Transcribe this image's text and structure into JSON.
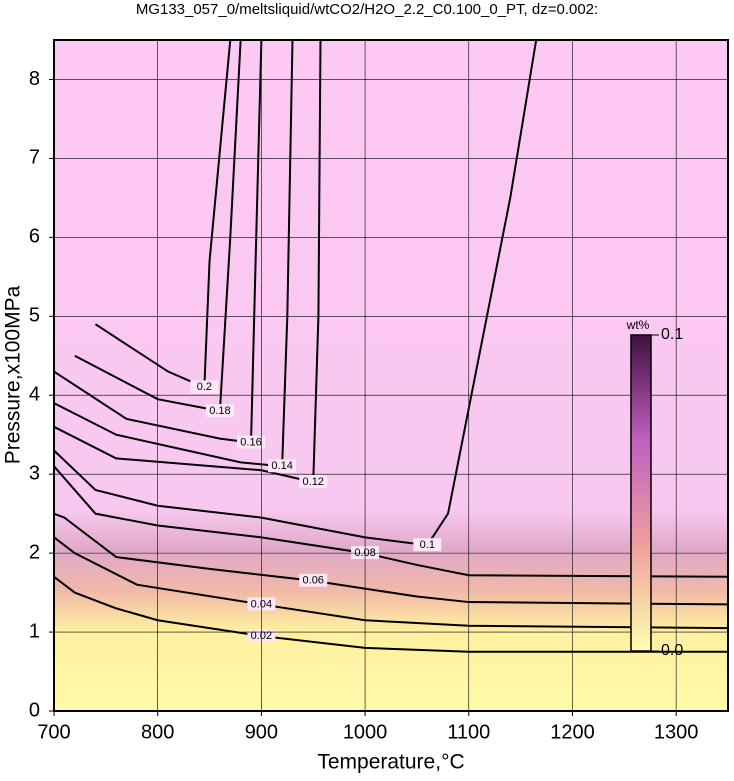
{
  "chart_data": {
    "type": "contour",
    "title": "MG133_057_0/meltsliquid/wtCO2/H2O_2.2_C0.100_0_PT, dz=0.002:",
    "xlabel": "Temperature,°C",
    "ylabel": "Pressure,x100MPa",
    "xlim": [
      700,
      1350
    ],
    "ylim": [
      0,
      8.5
    ],
    "xticks": [
      700,
      800,
      900,
      1000,
      1100,
      1200,
      1300
    ],
    "yticks": [
      0,
      1,
      2,
      3,
      4,
      5,
      6,
      7,
      8
    ],
    "grid": true,
    "color": "#000000",
    "colorbar": {
      "label": "wt%",
      "range": [
        0,
        0.1
      ],
      "ticks": [
        {
          "value": 0,
          "label": "0.0"
        },
        0.1
      ],
      "colors": [
        "#ffffb0",
        "#f0a0a0",
        "#c060c0",
        "#401040"
      ]
    },
    "contours": [
      {
        "level": 0.02,
        "x": [
          700,
          720,
          760,
          800,
          900,
          1000,
          1100,
          1350
        ],
        "y": [
          1.7,
          1.5,
          1.3,
          1.15,
          0.95,
          0.8,
          0.75,
          0.75
        ]
      },
      {
        "level": 0.04,
        "x": [
          700,
          720,
          780,
          900,
          1000,
          1100,
          1350
        ],
        "y": [
          2.2,
          2.0,
          1.6,
          1.35,
          1.15,
          1.08,
          1.05
        ]
      },
      {
        "level": 0.06,
        "x": [
          700,
          710,
          760,
          850,
          950,
          1050,
          1100,
          1350
        ],
        "y": [
          2.5,
          2.45,
          1.95,
          1.8,
          1.65,
          1.45,
          1.38,
          1.35
        ]
      },
      {
        "level": 0.08,
        "x": [
          700,
          740,
          800,
          900,
          1000,
          1050,
          1100,
          1350
        ],
        "y": [
          3.1,
          2.5,
          2.35,
          2.2,
          2.0,
          1.85,
          1.72,
          1.7
        ]
      },
      {
        "level": 0.1,
        "x": [
          700,
          740,
          800,
          900,
          1000,
          1060,
          1080,
          1110,
          1140,
          1165
        ],
        "y": [
          3.3,
          2.8,
          2.6,
          2.45,
          2.2,
          2.1,
          2.5,
          4.5,
          6.5,
          8.5
        ]
      },
      {
        "level": 0.12,
        "x": [
          700,
          760,
          900,
          950,
          955,
          957
        ],
        "y": [
          3.6,
          3.2,
          3.05,
          2.9,
          5.0,
          8.5
        ]
      },
      {
        "level": 0.14,
        "x": [
          700,
          760,
          880,
          920,
          925,
          930
        ],
        "y": [
          3.9,
          3.5,
          3.15,
          3.1,
          5.0,
          8.5
        ]
      },
      {
        "level": 0.16,
        "x": [
          700,
          770,
          860,
          890,
          895,
          900
        ],
        "y": [
          4.3,
          3.7,
          3.45,
          3.4,
          6.0,
          8.5
        ]
      },
      {
        "level": 0.18,
        "x": [
          720,
          800,
          860,
          870,
          880
        ],
        "y": [
          4.5,
          3.95,
          3.8,
          6.0,
          8.5
        ]
      },
      {
        "level": 0.2,
        "x": [
          740,
          810,
          845,
          850,
          870
        ],
        "y": [
          4.9,
          4.3,
          4.1,
          5.7,
          8.5
        ]
      }
    ]
  }
}
